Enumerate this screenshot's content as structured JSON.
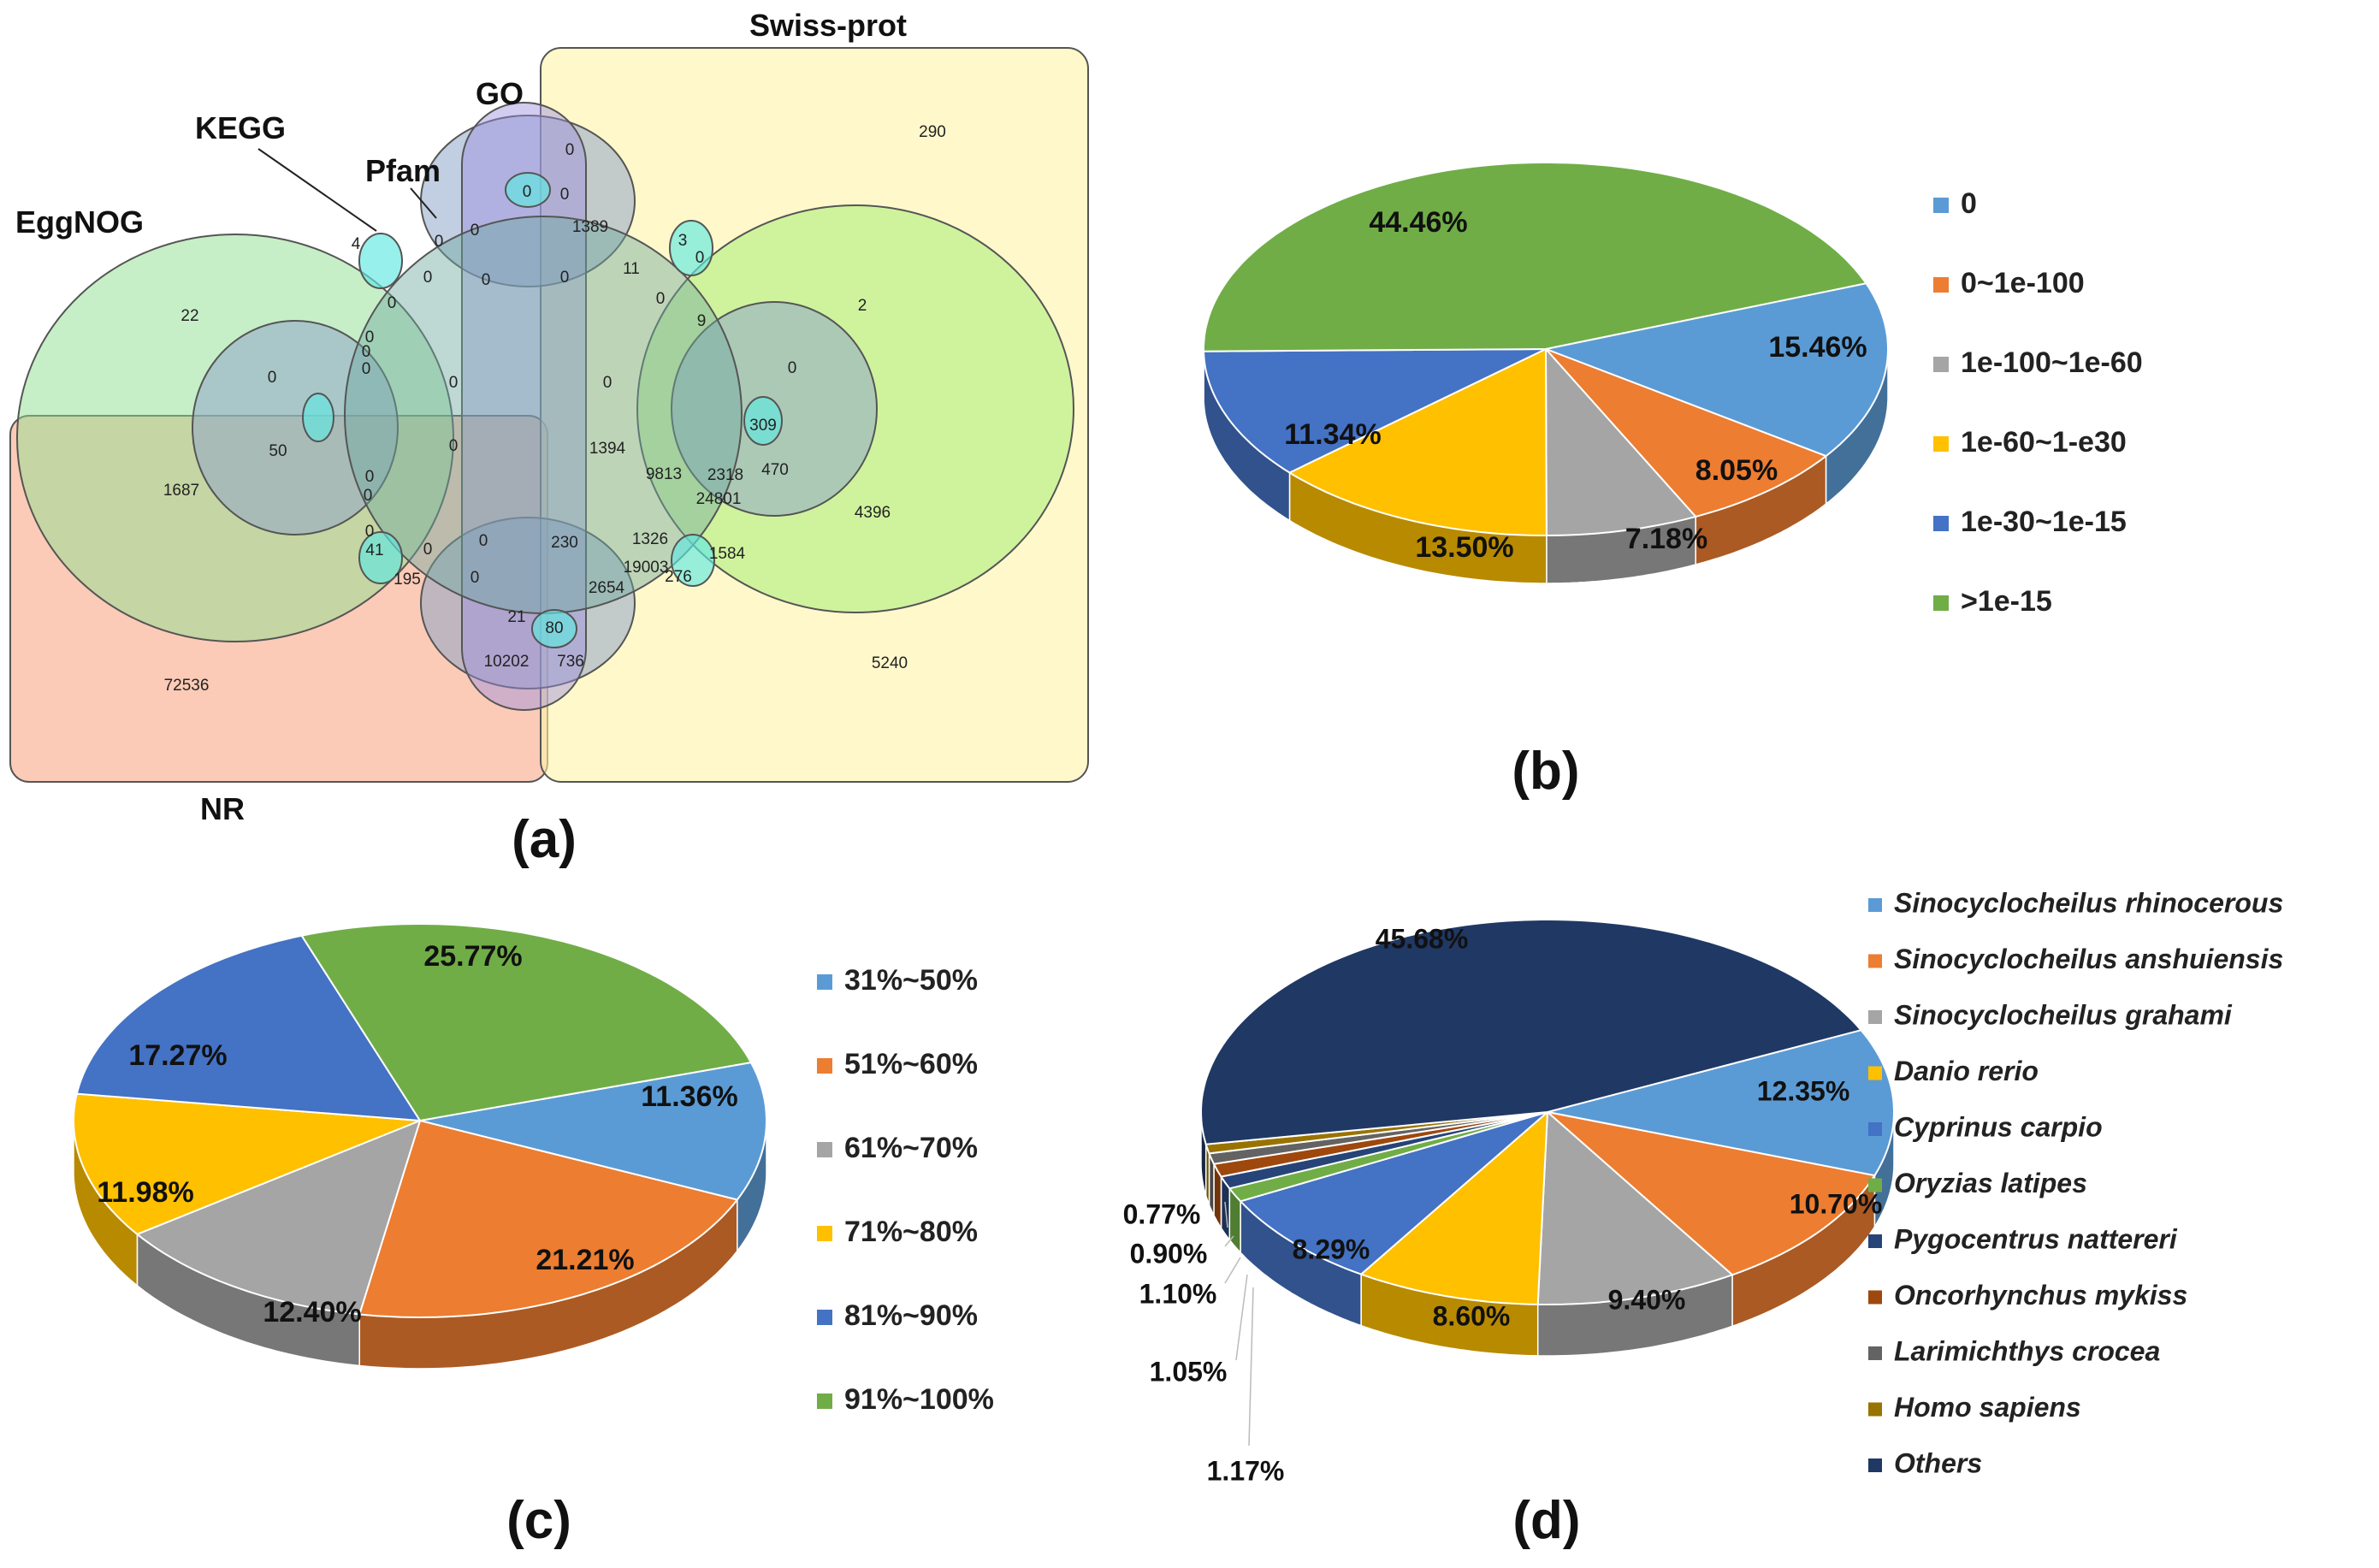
{
  "figure": {
    "panels": [
      {
        "id": "a",
        "label": "(a)"
      },
      {
        "id": "b",
        "label": "(b)"
      },
      {
        "id": "c",
        "label": "(c)"
      },
      {
        "id": "d",
        "label": "(d)"
      }
    ]
  },
  "colors": {
    "blue": "#5b9bd5",
    "orange": "#ed7d31",
    "gray": "#a5a5a5",
    "yellow": "#ffc000",
    "darkblue": "#4472c4",
    "green": "#70ad47",
    "navy": "#264478",
    "rust": "#9e480e",
    "darkgray": "#636363",
    "mustard": "#997300",
    "deepnavy": "#203864"
  },
  "venn": {
    "sets": {
      "swissprot": "Swiss-prot",
      "go": "GO",
      "kegg": "KEGG",
      "pfam": "Pfam",
      "eggnog": "EggNOG",
      "nr": "NR"
    },
    "numbers": [
      "290",
      "0",
      "0",
      "0",
      "4",
      "0",
      "0",
      "1389",
      "3",
      "11",
      "0",
      "22",
      "0",
      "0",
      "0",
      "0",
      "0",
      "0",
      "9",
      "0",
      "2",
      "0",
      "0",
      "0",
      "0",
      "0",
      "309",
      "50",
      "1394",
      "470",
      "1687",
      "0",
      "2318",
      "24801",
      "9813",
      "4396",
      "0",
      "0",
      "1326",
      "1584",
      "0",
      "41",
      "0",
      "0",
      "230",
      "19003",
      "276",
      "195",
      "0",
      "2654",
      "21",
      "80",
      "10202",
      "736",
      "5240",
      "72536"
    ]
  },
  "chart_data": [
    {
      "panel": "b",
      "type": "pie",
      "title": "",
      "slices": [
        {
          "label": "0",
          "value": 15.46,
          "text": "15.46%",
          "color": "#5b9bd5"
        },
        {
          "label": "0~1e-100",
          "value": 8.05,
          "text": "8.05%",
          "color": "#ed7d31"
        },
        {
          "label": "1e-100~1e-60",
          "value": 7.18,
          "text": "7.18%",
          "color": "#a5a5a5"
        },
        {
          "label": "1e-60~1-e30",
          "value": 13.5,
          "text": "13.50%",
          "color": "#ffc000"
        },
        {
          "label": "1e-30~1e-15",
          "value": 11.34,
          "text": "11.34%",
          "color": "#4472c4"
        },
        {
          "label": ">1e-15",
          "value": 44.46,
          "text": "44.46%",
          "color": "#70ad47"
        }
      ]
    },
    {
      "panel": "c",
      "type": "pie",
      "title": "",
      "slices": [
        {
          "label": "31%~50%",
          "value": 11.36,
          "text": "11.36%",
          "color": "#5b9bd5"
        },
        {
          "label": "51%~60%",
          "value": 21.21,
          "text": "21.21%",
          "color": "#ed7d31"
        },
        {
          "label": "61%~70%",
          "value": 12.4,
          "text": "12.40%",
          "color": "#a5a5a5"
        },
        {
          "label": "71%~80%",
          "value": 11.98,
          "text": "11.98%",
          "color": "#ffc000"
        },
        {
          "label": "81%~90%",
          "value": 17.27,
          "text": "17.27%",
          "color": "#4472c4"
        },
        {
          "label": "91%~100%",
          "value": 25.77,
          "text": "25.77%",
          "color": "#70ad47"
        }
      ]
    },
    {
      "panel": "d",
      "type": "pie",
      "title": "",
      "slices": [
        {
          "label": "Sinocyclocheilus rhinocerous",
          "value": 12.35,
          "text": "12.35%",
          "color": "#5b9bd5"
        },
        {
          "label": "Sinocyclocheilus anshuiensis",
          "value": 10.7,
          "text": "10.70%",
          "color": "#ed7d31"
        },
        {
          "label": "Sinocyclocheilus grahami",
          "value": 9.4,
          "text": "9.40%",
          "color": "#a5a5a5"
        },
        {
          "label": "Danio rerio",
          "value": 8.6,
          "text": "8.60%",
          "color": "#ffc000"
        },
        {
          "label": "Cyprinus carpio",
          "value": 8.29,
          "text": "8.29%",
          "color": "#4472c4"
        },
        {
          "label": "Oryzias latipes",
          "value": 1.17,
          "text": "1.17%",
          "color": "#70ad47"
        },
        {
          "label": "Pygocentrus nattereri",
          "value": 1.05,
          "text": "1.05%",
          "color": "#264478"
        },
        {
          "label": "Oncorhynchus mykiss",
          "value": 1.1,
          "text": "1.10%",
          "color": "#9e480e"
        },
        {
          "label": "Larimichthys crocea",
          "value": 0.9,
          "text": "0.90%",
          "color": "#636363"
        },
        {
          "label": "Homo sapiens",
          "value": 0.77,
          "text": "0.77%",
          "color": "#997300"
        },
        {
          "label": "Others",
          "value": 45.68,
          "text": "45.68%",
          "color": "#203864"
        }
      ]
    }
  ]
}
